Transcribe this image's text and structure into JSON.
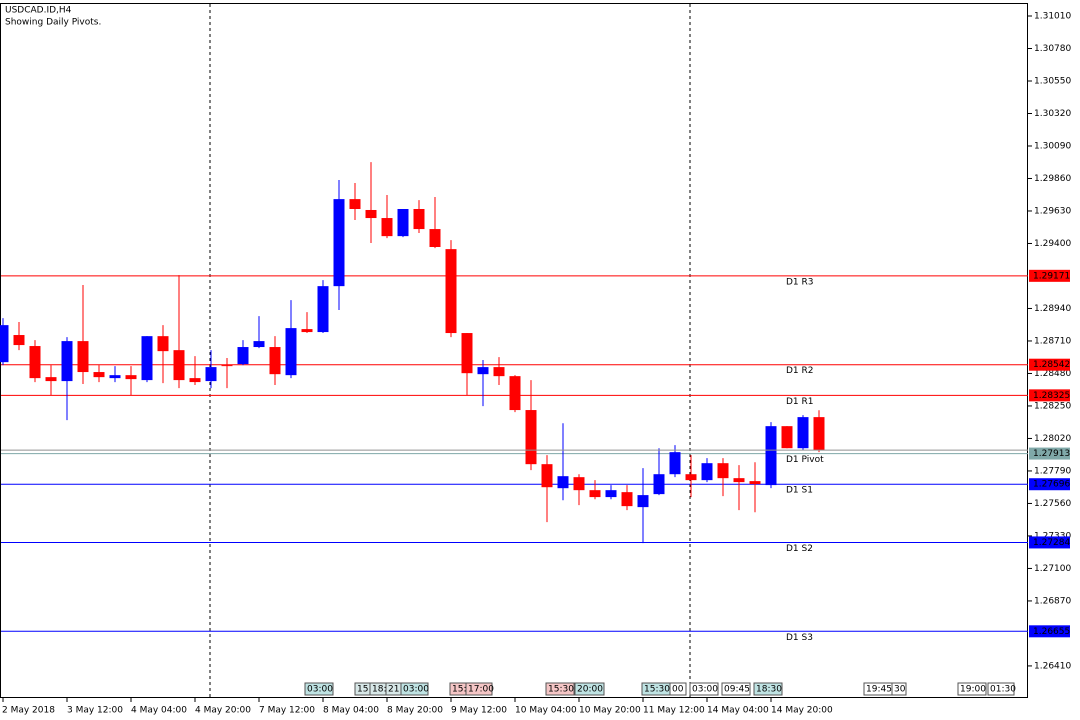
{
  "chart_data": {
    "type": "candlestick",
    "title": "USDCAD.ID,H4",
    "subtitle": "Showing Daily Pivots.",
    "categories": [
      "2 May 2018",
      null,
      null,
      null,
      "3 May 12:00",
      null,
      null,
      null,
      "4 May 04:00",
      null,
      null,
      null,
      "4 May 20:00",
      null,
      null,
      null,
      "7 May 12:00",
      null,
      null,
      null,
      "8 May 04:00",
      null,
      null,
      null,
      "8 May 20:00",
      null,
      null,
      null,
      "9 May 12:00",
      null,
      null,
      null,
      "10 May 04:00",
      null,
      null,
      null,
      "10 May 20:00",
      null,
      null,
      null,
      "11 May 12:00",
      null,
      null,
      null,
      "14 May 04:00",
      null,
      null,
      null,
      "14 May 20:00",
      null,
      null,
      null
    ],
    "open": [
      1.2856,
      1.28752,
      1.28674,
      1.28454,
      1.28426,
      1.28709,
      1.2849,
      1.28447,
      1.28468,
      1.28433,
      1.28744,
      1.28645,
      1.28447,
      1.28426,
      1.28539,
      1.28546,
      1.28667,
      1.28667,
      1.28468,
      1.28794,
      1.28773,
      1.29098,
      1.29714,
      1.29637,
      1.2958,
      1.29452,
      1.29644,
      1.29502,
      1.2936,
      1.28766,
      1.28475,
      1.28525,
      1.28461,
      1.28221,
      1.27838,
      1.27668,
      1.27746,
      1.27654,
      1.27605,
      1.2764,
      1.27534,
      1.27626,
      1.27767,
      1.27767,
      1.27725,
      1.27845,
      1.27739,
      1.27718,
      1.2769,
      1.28107,
      1.27951,
      1.28171
    ],
    "high": [
      1.28872,
      1.28844,
      1.28716,
      1.28539,
      1.28737,
      1.29106,
      1.28539,
      1.28532,
      1.28532,
      1.28744,
      1.28822,
      1.29176,
      1.28603,
      1.28645,
      1.28589,
      1.28716,
      1.28886,
      1.28744,
      1.28999,
      1.28914,
      1.29141,
      1.29849,
      1.29828,
      1.29976,
      1.29743,
      1.29644,
      1.29707,
      1.29729,
      1.29424,
      1.28766,
      1.28575,
      1.28596,
      1.28468,
      1.28433,
      1.27902,
      1.28128,
      1.27767,
      1.27725,
      1.2769,
      1.2769,
      1.2781,
      1.27951,
      1.27973,
      1.27902,
      1.27881,
      1.27881,
      1.27831,
      1.27852,
      1.28136,
      1.28107,
      1.28185,
      1.2822
    ],
    "low": [
      1.28539,
      1.28645,
      1.28419,
      1.28327,
      1.2815,
      1.28405,
      1.28419,
      1.28419,
      1.28327,
      1.28419,
      1.28412,
      1.28376,
      1.28398,
      1.28376,
      1.28376,
      1.28539,
      1.28659,
      1.28398,
      1.28447,
      1.28766,
      1.28766,
      1.28929,
      1.29566,
      1.29403,
      1.29438,
      1.29445,
      1.29474,
      1.29367,
      1.28737,
      1.28327,
      1.28249,
      1.28398,
      1.28206,
      1.27796,
      1.27428,
      1.27583,
      1.27548,
      1.2759,
      1.2759,
      1.27513,
      1.27279,
      1.27619,
      1.27746,
      1.27605,
      1.27711,
      1.27612,
      1.27513,
      1.27498,
      1.27668,
      1.27951,
      1.27937,
      1.27923
    ],
    "close": [
      1.28822,
      1.28681,
      1.28447,
      1.28426,
      1.28709,
      1.2849,
      1.28454,
      1.28468,
      1.2844,
      1.28744,
      1.28638,
      1.28433,
      1.28419,
      1.28525,
      1.28532,
      1.28667,
      1.28709,
      1.28475,
      1.28801,
      1.28773,
      1.29098,
      1.29714,
      1.29644,
      1.2958,
      1.29452,
      1.29644,
      1.29502,
      1.29375,
      1.28766,
      1.28482,
      1.28525,
      1.28461,
      1.28221,
      1.27838,
      1.27675,
      1.27753,
      1.27654,
      1.27605,
      1.27654,
      1.27541,
      1.27619,
      1.27767,
      1.27923,
      1.27725,
      1.27845,
      1.27739,
      1.27711,
      1.27697,
      1.28107,
      1.27951,
      1.28171,
      1.27937
    ],
    "up_color": "#0000ff",
    "down_color": "#ff0000",
    "ylim": [
      1.26183,
      1.31102
    ],
    "yticks": [
      {
        "value": 1.3101,
        "label": "1.31010"
      },
      {
        "value": 1.3078,
        "label": "1.30780"
      },
      {
        "value": 1.3055,
        "label": "1.30550"
      },
      {
        "value": 1.3032,
        "label": "1.30320"
      },
      {
        "value": 1.3009,
        "label": "1.30090"
      },
      {
        "value": 1.2986,
        "label": "1.29860"
      },
      {
        "value": 1.2963,
        "label": "1.29630"
      },
      {
        "value": 1.294,
        "label": "1.29400"
      },
      {
        "value": 1.2894,
        "label": "1.28940"
      },
      {
        "value": 1.2871,
        "label": "1.28710"
      },
      {
        "value": 1.2848,
        "label": "1.28480"
      },
      {
        "value": 1.2825,
        "label": "1.28250"
      },
      {
        "value": 1.2802,
        "label": "1.28020"
      },
      {
        "value": 1.2779,
        "label": "1.27790"
      },
      {
        "value": 1.2756,
        "label": "1.27560"
      },
      {
        "value": 1.2733,
        "label": "1.27330"
      },
      {
        "value": 1.271,
        "label": "1.27100"
      },
      {
        "value": 1.2687,
        "label": "1.26870"
      },
      {
        "value": 1.2641,
        "label": "1.26410"
      }
    ],
    "pivots": [
      {
        "name": "D1 R3",
        "value": 1.29171,
        "color": "#ff0000"
      },
      {
        "name": "D1 R2",
        "value": 1.28542,
        "color": "#ff0000"
      },
      {
        "name": "D1 R1",
        "value": 1.28325,
        "color": "#ff0000"
      },
      {
        "name": "D1 Pivot",
        "value": 1.27913,
        "color": "#7fa8a8"
      },
      {
        "name": "D1 S1",
        "value": 1.27696,
        "color": "#0000ff"
      },
      {
        "name": "D1 S2",
        "value": 1.27284,
        "color": "#0000ff"
      },
      {
        "name": "D1 S3",
        "value": 1.26655,
        "color": "#0000ff"
      }
    ],
    "events": [
      "03:00",
      "15:",
      "18:",
      "21:",
      "03:00",
      "15:",
      "17:00",
      "15:30",
      "20:00",
      "15:30",
      "00",
      "03:00",
      "09:45",
      "18:30",
      "19:45",
      "30",
      "19:00",
      "01:30"
    ]
  }
}
